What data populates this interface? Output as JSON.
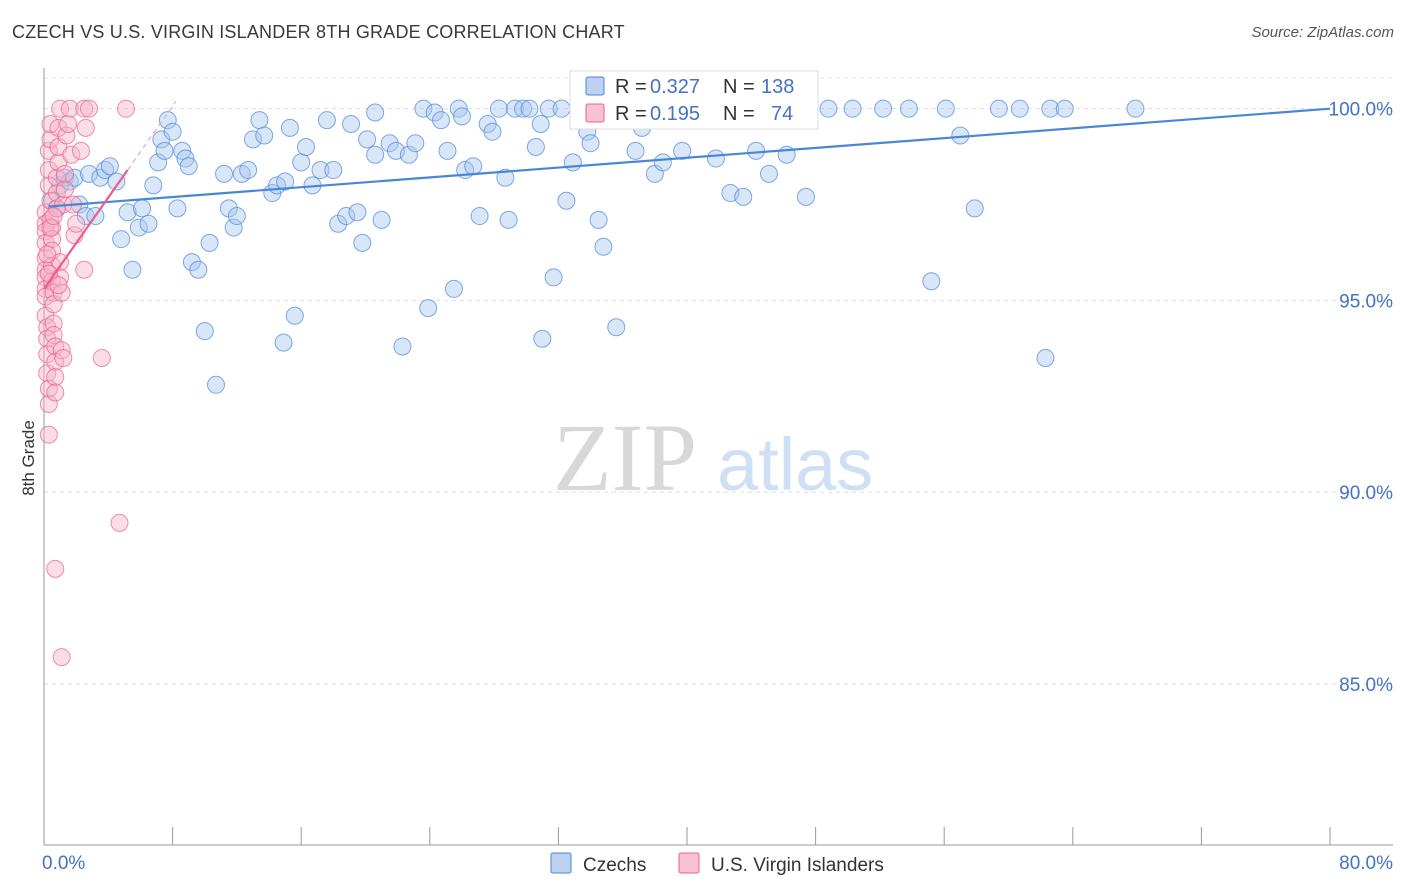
{
  "title": "CZECH VS U.S. VIRGIN ISLANDER 8TH GRADE CORRELATION CHART",
  "source": "Source: ZipAtlas.com",
  "watermark": {
    "zip": "ZIP",
    "atlas": "atlas"
  },
  "legend": {
    "rows": [
      {
        "r_label": "R =",
        "r_value": "0.327",
        "n_label": "N =",
        "n_value": "138",
        "color": "#9fbfea"
      },
      {
        "r_label": "R =",
        "r_value": "0.195",
        "n_label": "N =",
        "n_value": "74",
        "color": "#f5a8c0"
      }
    ]
  },
  "bottom_legend": [
    {
      "label": "Czechs",
      "color": "#9fbfea"
    },
    {
      "label": "U.S. Virgin Islanders",
      "color": "#f5a8c0"
    }
  ],
  "chart_data": {
    "type": "scatter",
    "title": "CZECH VS U.S. VIRGIN ISLANDER 8TH GRADE CORRELATION CHART",
    "xlabel": "",
    "ylabel": "8th Grade",
    "xlim": [
      0,
      80
    ],
    "ylim": [
      80.8,
      100.8
    ],
    "x_tick_labels": [
      {
        "value": 0,
        "label": "0.0%"
      },
      {
        "value": 80,
        "label": "80.0%"
      }
    ],
    "y_tick_labels": [
      {
        "value": 100,
        "label": "100.0%"
      },
      {
        "value": 95,
        "label": "95.0%"
      },
      {
        "value": 90,
        "label": "90.0%"
      },
      {
        "value": 85,
        "label": "85.0%"
      }
    ],
    "x_minor_ticks": [
      0,
      8,
      16,
      24,
      32,
      40,
      48,
      56,
      64,
      72,
      80
    ],
    "series": [
      {
        "name": "Czechs",
        "color": "#4a86d8",
        "fill": "#a9c8f0",
        "trend": {
          "x": [
            0.3,
            80
          ],
          "y": [
            97.45,
            100.0
          ]
        },
        "points": [
          [
            0.5,
            97.6
          ],
          [
            0.8,
            97.4
          ],
          [
            1.0,
            98.0
          ],
          [
            1.3,
            98.2
          ],
          [
            1.6,
            98.1
          ],
          [
            1.9,
            98.2
          ],
          [
            2.2,
            97.5
          ],
          [
            2.6,
            97.2
          ],
          [
            2.8,
            98.3
          ],
          [
            3.2,
            97.2
          ],
          [
            3.5,
            98.2
          ],
          [
            3.8,
            98.4
          ],
          [
            4.1,
            98.5
          ],
          [
            4.5,
            98.1
          ],
          [
            4.8,
            96.6
          ],
          [
            5.2,
            97.3
          ],
          [
            5.5,
            95.8
          ],
          [
            5.9,
            96.9
          ],
          [
            6.1,
            97.4
          ],
          [
            6.5,
            97.0
          ],
          [
            6.8,
            98.0
          ],
          [
            7.1,
            98.6
          ],
          [
            7.3,
            99.2
          ],
          [
            7.7,
            99.7
          ],
          [
            8.0,
            99.4
          ],
          [
            8.3,
            97.4
          ],
          [
            8.6,
            98.9
          ],
          [
            8.8,
            98.7
          ],
          [
            9.2,
            96.0
          ],
          [
            9.6,
            95.8
          ],
          [
            10.0,
            94.2
          ],
          [
            10.3,
            96.5
          ],
          [
            10.7,
            92.8
          ],
          [
            11.2,
            98.3
          ],
          [
            11.5,
            97.4
          ],
          [
            11.8,
            96.9
          ],
          [
            12.3,
            98.3
          ],
          [
            12.7,
            98.4
          ],
          [
            13.0,
            99.2
          ],
          [
            13.4,
            99.7
          ],
          [
            13.7,
            99.3
          ],
          [
            14.2,
            97.8
          ],
          [
            14.5,
            98.0
          ],
          [
            14.9,
            93.9
          ],
          [
            15.3,
            99.5
          ],
          [
            15.6,
            94.6
          ],
          [
            16.0,
            98.6
          ],
          [
            16.3,
            99.0
          ],
          [
            16.7,
            98.0
          ],
          [
            17.2,
            98.4
          ],
          [
            17.6,
            99.7
          ],
          [
            18.0,
            98.4
          ],
          [
            18.3,
            97.0
          ],
          [
            18.8,
            97.2
          ],
          [
            19.1,
            99.6
          ],
          [
            19.5,
            97.3
          ],
          [
            19.8,
            96.5
          ],
          [
            20.1,
            99.2
          ],
          [
            20.6,
            98.8
          ],
          [
            21.0,
            97.1
          ],
          [
            21.5,
            99.1
          ],
          [
            21.9,
            98.9
          ],
          [
            22.3,
            93.8
          ],
          [
            22.7,
            98.8
          ],
          [
            23.1,
            99.1
          ],
          [
            23.6,
            100.0
          ],
          [
            23.9,
            94.8
          ],
          [
            24.3,
            99.9
          ],
          [
            24.7,
            99.7
          ],
          [
            25.1,
            98.9
          ],
          [
            25.5,
            95.3
          ],
          [
            25.8,
            100.0
          ],
          [
            26.2,
            98.4
          ],
          [
            26.7,
            98.5
          ],
          [
            27.1,
            97.2
          ],
          [
            27.6,
            99.6
          ],
          [
            27.9,
            99.4
          ],
          [
            28.3,
            100.0
          ],
          [
            28.7,
            98.2
          ],
          [
            28.9,
            97.1
          ],
          [
            29.3,
            100.0
          ],
          [
            29.8,
            100.0
          ],
          [
            30.2,
            100.0
          ],
          [
            30.6,
            99.0
          ],
          [
            31.0,
            94.0
          ],
          [
            31.4,
            100.0
          ],
          [
            31.7,
            95.6
          ],
          [
            32.2,
            100.0
          ],
          [
            32.5,
            97.6
          ],
          [
            32.9,
            98.6
          ],
          [
            33.3,
            100.0
          ],
          [
            33.8,
            99.4
          ],
          [
            34.1,
            100.0
          ],
          [
            34.5,
            97.1
          ],
          [
            34.8,
            96.4
          ],
          [
            35.2,
            100.0
          ],
          [
            35.6,
            94.3
          ],
          [
            36.0,
            100.0
          ],
          [
            36.4,
            100.0
          ],
          [
            36.8,
            98.9
          ],
          [
            37.2,
            99.5
          ],
          [
            37.6,
            100.0
          ],
          [
            38.0,
            98.3
          ],
          [
            38.5,
            98.6
          ],
          [
            38.9,
            100.0
          ],
          [
            39.3,
            100.0
          ],
          [
            39.7,
            98.9
          ],
          [
            40.2,
            100.0
          ],
          [
            40.6,
            100.0
          ],
          [
            41.0,
            100.0
          ],
          [
            41.4,
            99.7
          ],
          [
            41.8,
            98.7
          ],
          [
            42.3,
            100.0
          ],
          [
            42.7,
            97.8
          ],
          [
            43.1,
            100.0
          ],
          [
            43.5,
            97.7
          ],
          [
            43.9,
            100.0
          ],
          [
            44.3,
            98.9
          ],
          [
            44.8,
            100.0
          ],
          [
            45.1,
            98.3
          ],
          [
            45.5,
            100.0
          ],
          [
            45.9,
            100.0
          ],
          [
            46.2,
            98.8
          ],
          [
            46.6,
            100.0
          ],
          [
            47.0,
            100.0
          ],
          [
            47.4,
            97.7
          ],
          [
            48.8,
            100.0
          ],
          [
            50.3,
            100.0
          ],
          [
            52.2,
            100.0
          ],
          [
            53.8,
            100.0
          ],
          [
            55.2,
            95.5
          ],
          [
            56.1,
            100.0
          ],
          [
            57.0,
            99.3
          ],
          [
            57.9,
            97.4
          ],
          [
            59.4,
            100.0
          ],
          [
            60.7,
            100.0
          ],
          [
            62.3,
            93.5
          ],
          [
            62.6,
            100.0
          ],
          [
            63.5,
            100.0
          ],
          [
            67.9,
            100.0
          ],
          [
            7.5,
            98.9
          ],
          [
            9.0,
            98.5
          ],
          [
            12.0,
            97.2
          ],
          [
            15.0,
            98.1
          ],
          [
            20.6,
            99.9
          ],
          [
            26.0,
            99.8
          ],
          [
            30.9,
            99.6
          ],
          [
            34.0,
            99.1
          ]
        ]
      },
      {
        "name": "U.S. Virgin Islanders",
        "color": "#e8608a",
        "fill": "#f7b4c8",
        "trend": {
          "x": [
            0.0,
            5.2
          ],
          "y": [
            95.3,
            98.4
          ]
        },
        "points": [
          [
            0.1,
            97.3
          ],
          [
            0.1,
            97.0
          ],
          [
            0.1,
            96.8
          ],
          [
            0.1,
            96.5
          ],
          [
            0.1,
            96.1
          ],
          [
            0.1,
            95.8
          ],
          [
            0.1,
            95.6
          ],
          [
            0.1,
            95.3
          ],
          [
            0.1,
            95.1
          ],
          [
            0.1,
            94.6
          ],
          [
            0.2,
            94.3
          ],
          [
            0.2,
            94.0
          ],
          [
            0.2,
            93.6
          ],
          [
            0.2,
            93.1
          ],
          [
            0.3,
            92.7
          ],
          [
            0.3,
            92.3
          ],
          [
            0.3,
            91.5
          ],
          [
            0.3,
            98.0
          ],
          [
            0.3,
            98.4
          ],
          [
            0.3,
            98.9
          ],
          [
            0.4,
            99.2
          ],
          [
            0.4,
            99.6
          ],
          [
            0.4,
            97.6
          ],
          [
            0.4,
            97.1
          ],
          [
            0.5,
            96.9
          ],
          [
            0.5,
            96.6
          ],
          [
            0.5,
            96.3
          ],
          [
            0.5,
            95.9
          ],
          [
            0.5,
            95.5
          ],
          [
            0.6,
            95.2
          ],
          [
            0.6,
            94.9
          ],
          [
            0.6,
            94.4
          ],
          [
            0.6,
            94.1
          ],
          [
            0.7,
            93.8
          ],
          [
            0.7,
            93.4
          ],
          [
            0.7,
            93.0
          ],
          [
            0.7,
            92.6
          ],
          [
            0.8,
            97.4
          ],
          [
            0.8,
            97.8
          ],
          [
            0.8,
            98.2
          ],
          [
            0.9,
            98.6
          ],
          [
            0.9,
            99.0
          ],
          [
            0.9,
            99.5
          ],
          [
            1.0,
            100.0
          ],
          [
            1.0,
            96.0
          ],
          [
            1.0,
            95.6
          ],
          [
            1.1,
            95.2
          ],
          [
            1.1,
            93.7
          ],
          [
            1.2,
            93.5
          ],
          [
            1.2,
            97.5
          ],
          [
            1.3,
            97.9
          ],
          [
            1.3,
            98.3
          ],
          [
            1.4,
            99.3
          ],
          [
            1.5,
            99.6
          ],
          [
            1.6,
            100.0
          ],
          [
            1.7,
            98.8
          ],
          [
            1.8,
            97.5
          ],
          [
            1.9,
            96.7
          ],
          [
            2.3,
            98.9
          ],
          [
            2.5,
            100.0
          ],
          [
            2.6,
            99.5
          ],
          [
            2.8,
            100.0
          ],
          [
            0.7,
            88.0
          ],
          [
            1.1,
            85.7
          ],
          [
            4.7,
            89.2
          ],
          [
            0.4,
            96.9
          ],
          [
            0.3,
            95.7
          ],
          [
            0.6,
            97.2
          ],
          [
            2.5,
            95.8
          ],
          [
            5.1,
            100.0
          ],
          [
            3.6,
            93.5
          ],
          [
            2.0,
            97.0
          ],
          [
            0.2,
            96.2
          ],
          [
            0.9,
            95.4
          ]
        ]
      }
    ]
  }
}
